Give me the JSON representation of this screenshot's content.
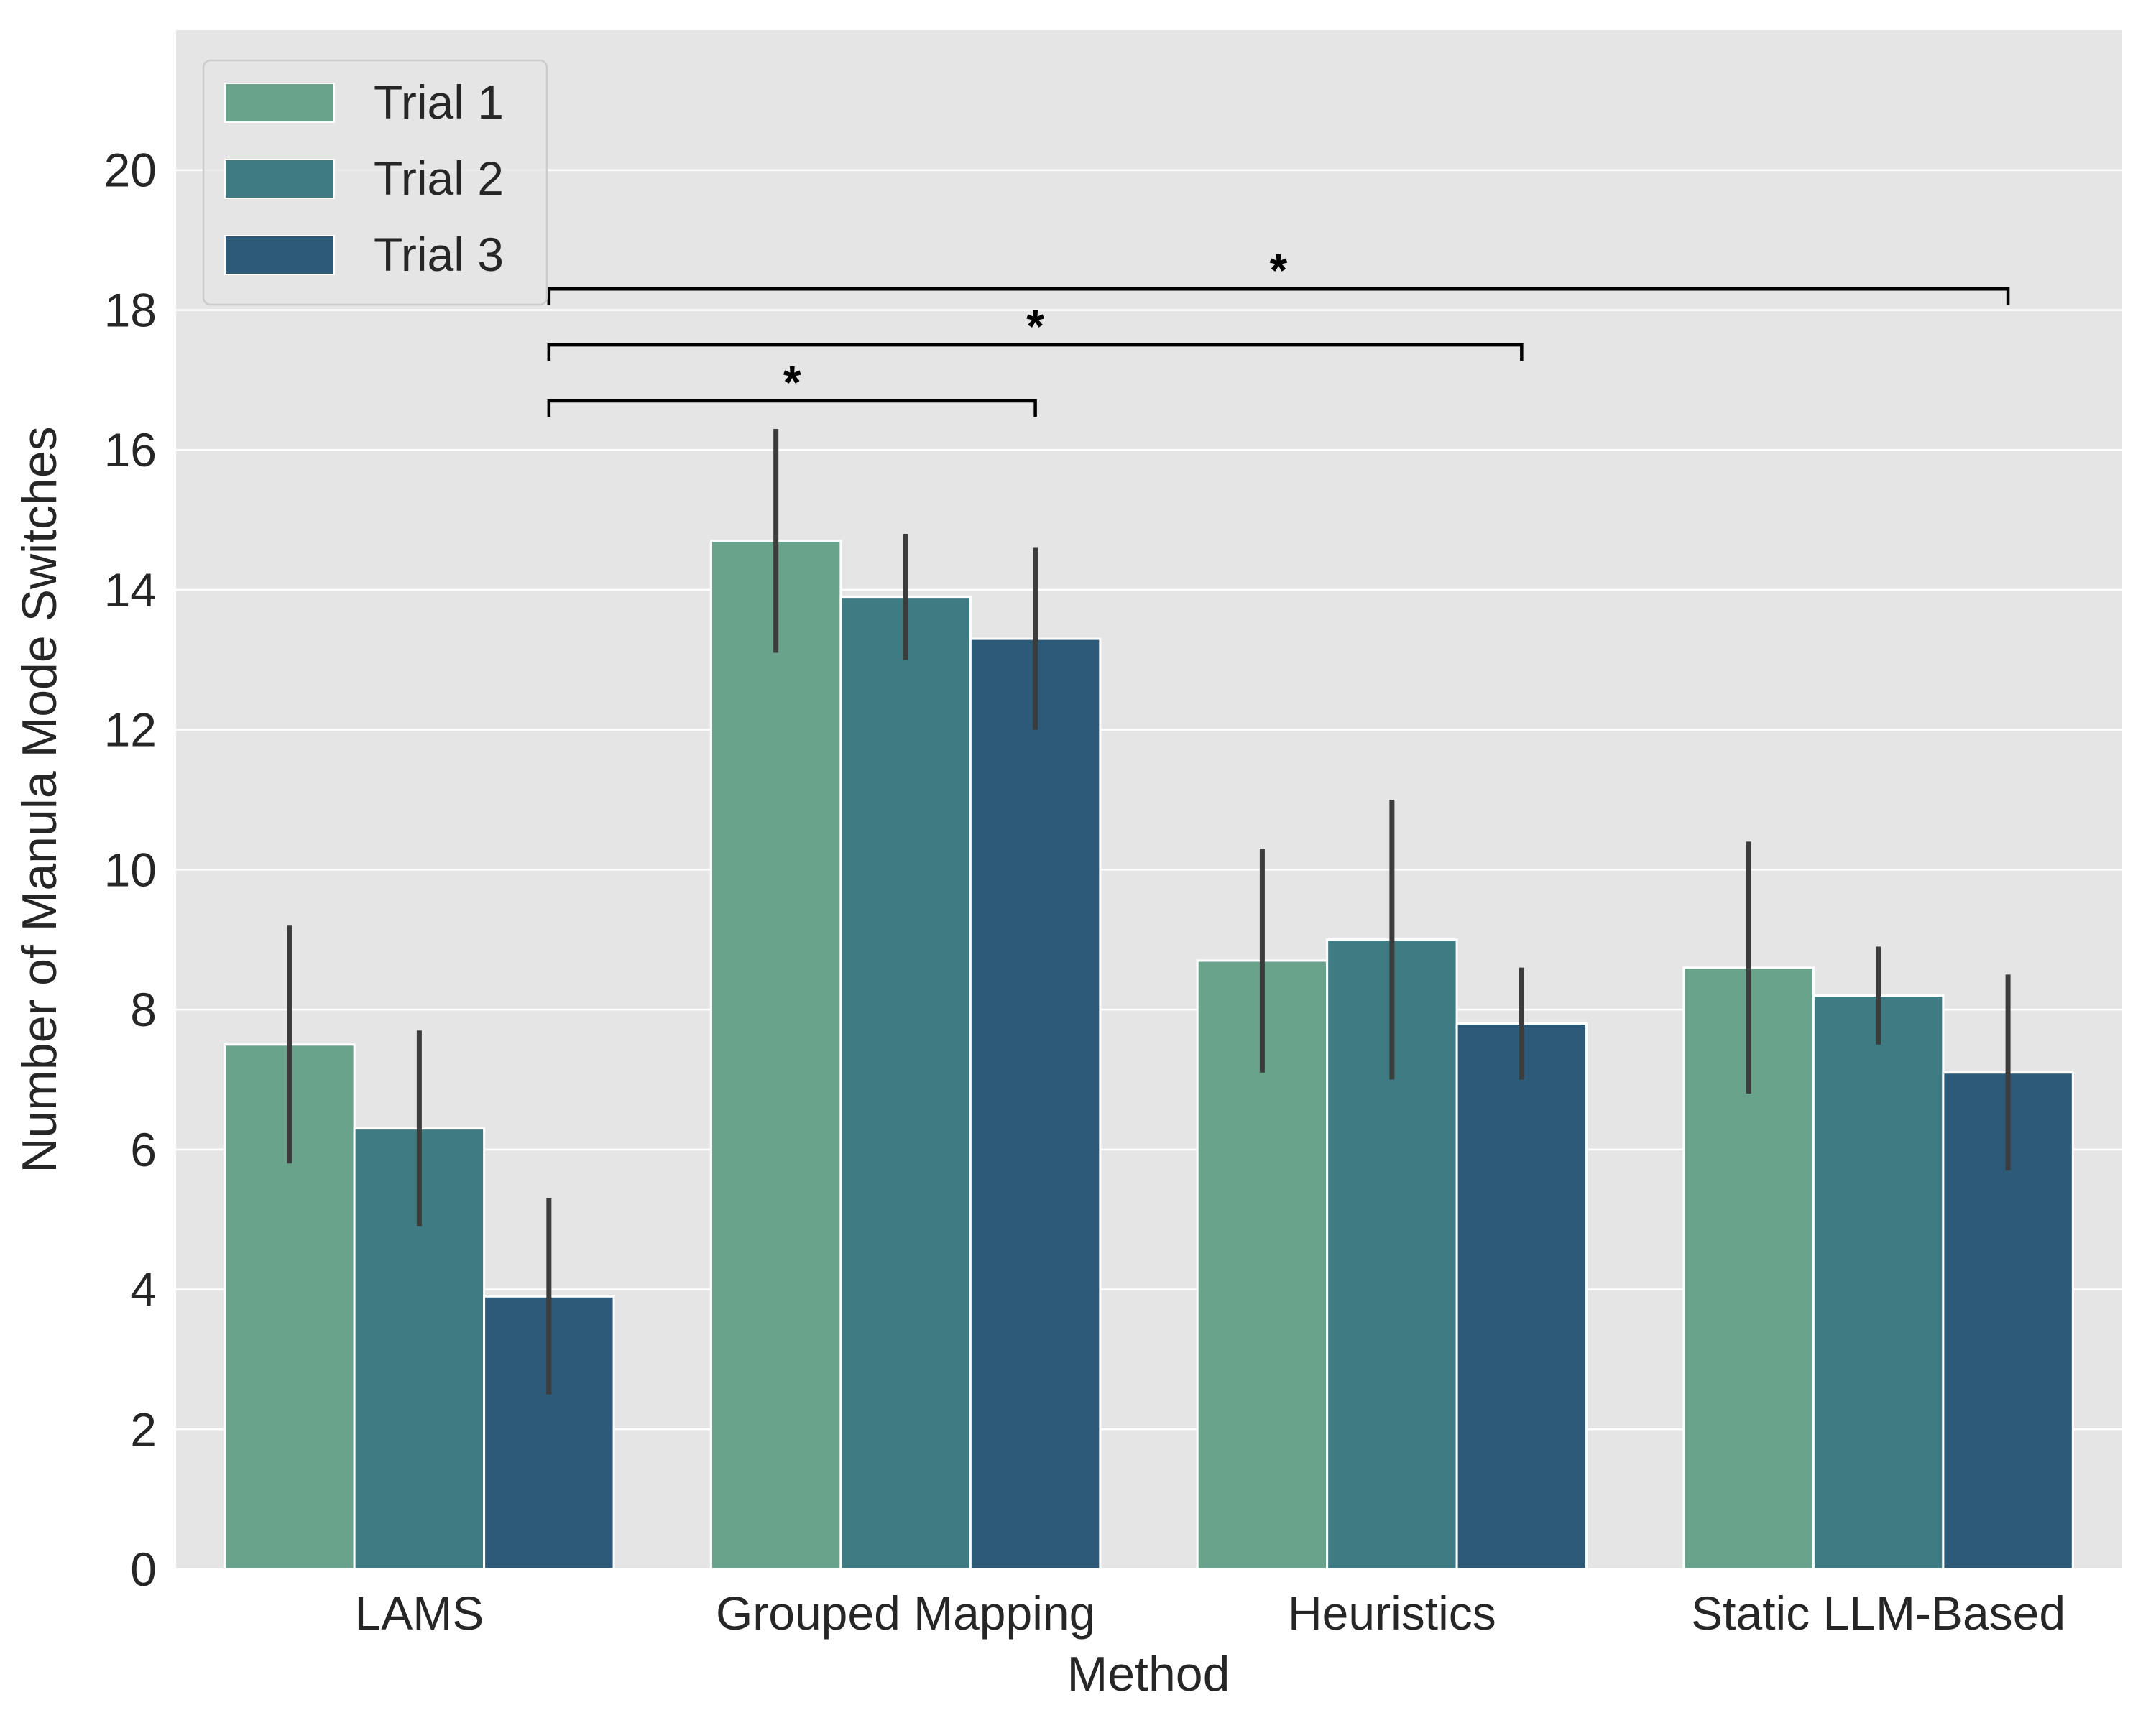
{
  "chart_data": {
    "type": "bar",
    "title": "",
    "xlabel": "Method",
    "ylabel": "Number of Manula Mode Switches",
    "categories": [
      "LAMS",
      "Grouped Mapping",
      "Heuristics",
      "Static LLM-Based"
    ],
    "ylim": [
      0,
      22
    ],
    "yticks": [
      0,
      2,
      4,
      6,
      8,
      10,
      12,
      14,
      16,
      18,
      20
    ],
    "grid": true,
    "legend_position": "top-left",
    "series": [
      {
        "name": "Trial 1",
        "color": "#6aa38c",
        "values": [
          7.5,
          14.7,
          8.7,
          8.6
        ],
        "err_low": [
          5.8,
          13.1,
          7.1,
          6.8
        ],
        "err_high": [
          9.2,
          16.3,
          10.3,
          10.4
        ]
      },
      {
        "name": "Trial 2",
        "color": "#3f7b82",
        "values": [
          6.3,
          13.9,
          9.0,
          8.2
        ],
        "err_low": [
          4.9,
          13.0,
          7.0,
          7.5
        ],
        "err_high": [
          7.7,
          14.8,
          11.0,
          8.9
        ]
      },
      {
        "name": "Trial 3",
        "color": "#2c5a78",
        "values": [
          3.9,
          13.3,
          7.8,
          7.1
        ],
        "err_low": [
          2.5,
          12.0,
          7.0,
          5.7
        ],
        "err_high": [
          5.3,
          14.6,
          8.6,
          8.5
        ]
      }
    ],
    "significance": [
      {
        "from_category": 0,
        "to_category": 1,
        "y": 16.7,
        "label": "*"
      },
      {
        "from_category": 0,
        "to_category": 2,
        "y": 17.5,
        "label": "*"
      },
      {
        "from_category": 0,
        "to_category": 3,
        "y": 18.3,
        "label": "*"
      }
    ],
    "colors": {
      "plot_background": "#e5e5e5",
      "grid": "#ffffff",
      "error_bar": "#3c3c3c",
      "bracket": "#000000"
    }
  }
}
